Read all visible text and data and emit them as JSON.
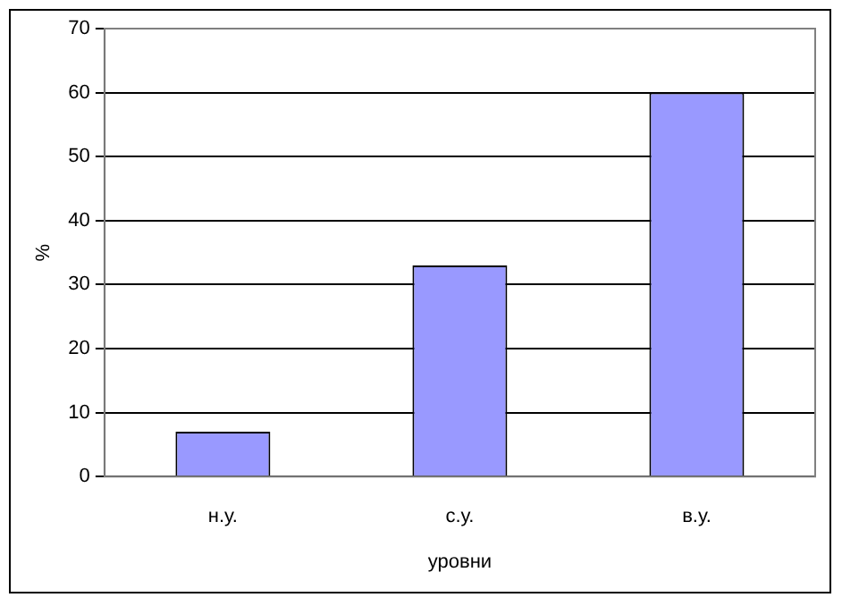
{
  "chart_data": {
    "type": "bar",
    "xlabel": "уровни",
    "ylabel": "%",
    "categories": [
      "н.у.",
      "с.у.",
      "в.у."
    ],
    "values": [
      7,
      33,
      60
    ],
    "color": "#9999ff",
    "ylim": [
      0,
      70
    ],
    "yticks": [
      0,
      10,
      20,
      30,
      40,
      50,
      60,
      70
    ],
    "grid": "y",
    "legend": false
  }
}
